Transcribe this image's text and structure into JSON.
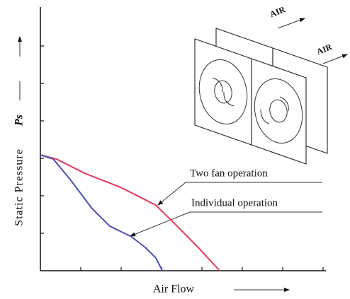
{
  "chart_data": {
    "type": "line",
    "y_label": "Static Pressure",
    "y_symbol": "Ps",
    "x_label": "Air Flow",
    "annotations": [
      "AIR",
      "AIR"
    ],
    "xlim": [
      0,
      7
    ],
    "ylim": [
      0,
      7
    ],
    "xticks": [
      1,
      2,
      3,
      4,
      5,
      6,
      7
    ],
    "yticks": [
      1,
      2,
      3,
      4,
      5,
      6
    ],
    "series": [
      {
        "name": "Two fan operation",
        "color": "#e8365a",
        "x": [
          0,
          0.4,
          1.1,
          1.98,
          2.86,
          3.39,
          3.91,
          4.44
        ],
        "values": [
          3.09,
          2.98,
          2.6,
          2.23,
          1.75,
          1.19,
          0.62,
          0
        ]
      },
      {
        "name": "Individual operation",
        "color": "#4a4fb8",
        "x": [
          0,
          0.32,
          0.75,
          1.28,
          1.72,
          2.25,
          2.6,
          2.86,
          3.02
        ],
        "values": [
          3.09,
          2.98,
          2.42,
          1.66,
          1.19,
          0.91,
          0.62,
          0.34,
          0
        ]
      }
    ]
  }
}
